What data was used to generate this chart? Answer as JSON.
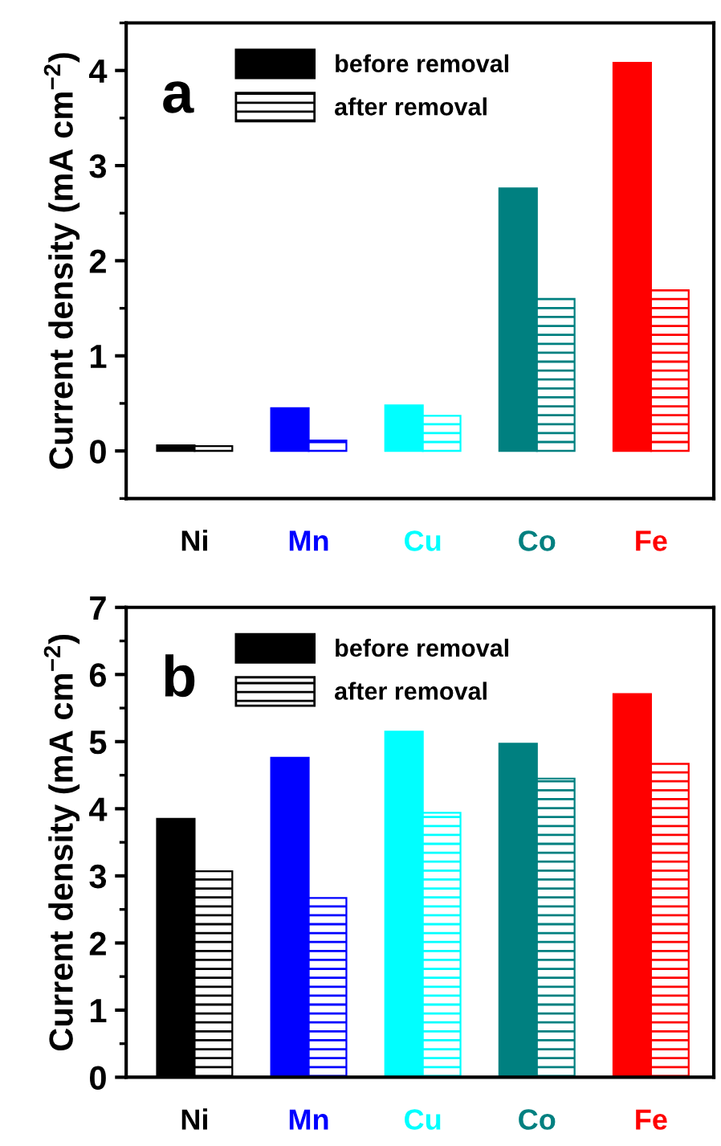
{
  "chart_data": [
    {
      "type": "bar",
      "categories": [
        "Ni",
        "Mn",
        "Cu",
        "Co",
        "Fe"
      ],
      "ylabel": "Current density (mA cm$^{−2}$)",
      "annotations": [
        "a"
      ],
      "ylim": [
        -0.5,
        4.5
      ],
      "yticks": [
        0,
        1,
        2,
        3,
        4
      ],
      "legend": "top",
      "series": [
        {
          "name": "before removal",
          "colors": [
            "#000000",
            "#0000ff",
            "#00ffff",
            "#008080",
            "#ff0000"
          ],
          "values": [
            0.06,
            0.45,
            0.48,
            2.76,
            4.08
          ]
        },
        {
          "name": "after removal",
          "colors": [
            "#000000",
            "#0000ff",
            "#00ffff",
            "#008080",
            "#ff0000"
          ],
          "values": [
            0.05,
            0.11,
            0.37,
            1.6,
            1.69
          ]
        }
      ]
    },
    {
      "type": "bar",
      "categories": [
        "Ni",
        "Mn",
        "Cu",
        "Co",
        "Fe"
      ],
      "ylabel": "Current density (mA cm$^{−2}$)",
      "annotations": [
        "b"
      ],
      "ylim": [
        0,
        7
      ],
      "yticks": [
        0,
        1,
        2,
        3,
        4,
        5,
        6,
        7
      ],
      "legend": "top",
      "series": [
        {
          "name": "before removal",
          "colors": [
            "#000000",
            "#0000ff",
            "#00ffff",
            "#008080",
            "#ff0000"
          ],
          "values": [
            3.85,
            4.76,
            5.15,
            4.97,
            5.71
          ]
        },
        {
          "name": "after removal",
          "colors": [
            "#000000",
            "#0000ff",
            "#00ffff",
            "#008080",
            "#ff0000"
          ],
          "values": [
            3.07,
            2.67,
            3.94,
            4.45,
            4.67
          ]
        }
      ]
    }
  ]
}
